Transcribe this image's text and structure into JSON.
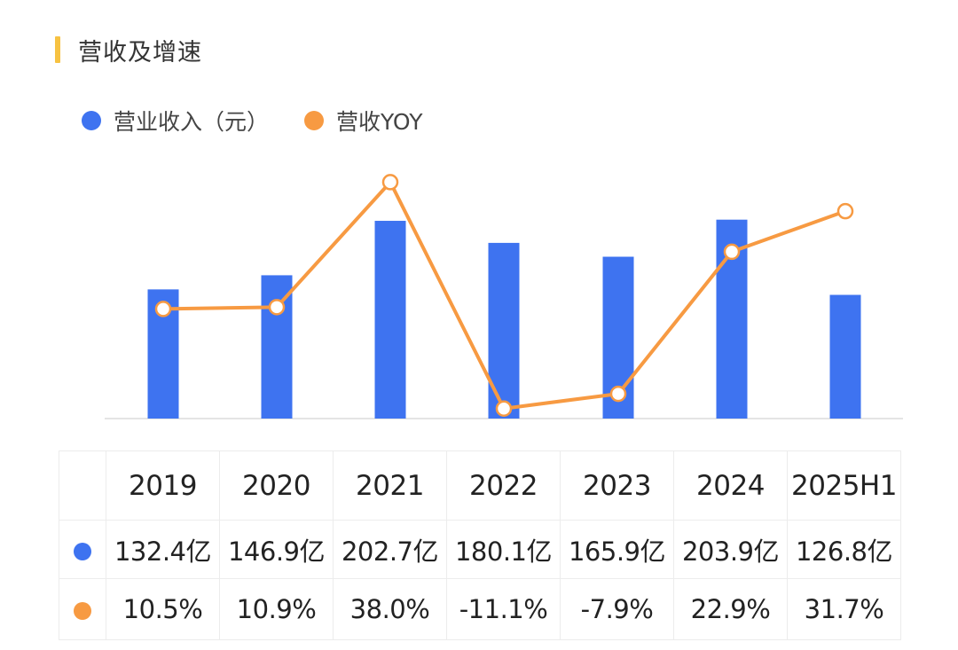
{
  "title": "营收及增速",
  "colors": {
    "accent_bar": "#f7c242",
    "revenue": "#3e73f0",
    "yoy": "#f79a42",
    "axis": "#e4e4e4"
  },
  "chart_data": {
    "type": "bar",
    "categories": [
      "2019",
      "2020",
      "2021",
      "2022",
      "2023",
      "2024",
      "2025H1"
    ],
    "series": [
      {
        "name": "营业收入（元）",
        "type": "bar",
        "axis": "left",
        "values": [
          132.4,
          146.9,
          202.7,
          180.1,
          165.9,
          203.9,
          126.8
        ]
      },
      {
        "name": "营收YOY",
        "type": "line",
        "axis": "right",
        "values": [
          10.5,
          10.9,
          38.0,
          -11.1,
          -7.9,
          22.9,
          31.7
        ]
      }
    ],
    "grid": false,
    "legend": "top-left"
  },
  "table": {
    "rows": [
      {
        "series": "营业收入（元）",
        "cells": [
          "132.4亿",
          "146.9亿",
          "202.7亿",
          "180.1亿",
          "165.9亿",
          "203.9亿",
          "126.8亿"
        ]
      },
      {
        "series": "营收YOY",
        "cells": [
          "10.5%",
          "10.9%",
          "38.0%",
          "-11.1%",
          "-7.9%",
          "22.9%",
          "31.7%"
        ]
      }
    ]
  }
}
